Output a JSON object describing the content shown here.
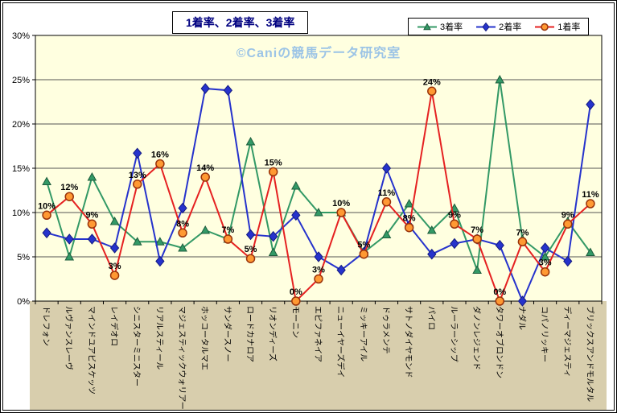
{
  "title": "1着率、2着率、3着率",
  "watermark": "©Caniの競馬データ研究室",
  "y_axis": {
    "tick_labels": [
      "0%",
      "5%",
      "10%",
      "15%",
      "20%",
      "25%",
      "30%"
    ]
  },
  "colors": {
    "plot_bg": "#ffffe0",
    "label_band_bg": "#d8cead",
    "grid": "#555555",
    "axis": "#000000",
    "title_text": "#000080",
    "watermark_text": "#9cc4e6",
    "frame_bg": "#ffffff"
  },
  "chart_data": {
    "type": "line",
    "title": "1着率、2着率、3着率",
    "ylim": [
      0,
      30
    ],
    "ytick_step": 5,
    "grid": true,
    "legend_position": "top-right",
    "categories": [
      "ドレフォン",
      "ルヴァンスレーヴ",
      "マインドユアビスケッツ",
      "レイデオロ",
      "シニスターミニスター",
      "リアルスティール",
      "マジェスティックウォリアー",
      "ホッコータルマエ",
      "サンダースノー",
      "ロードカナロア",
      "リオンディーズ",
      "モーニン",
      "エピファネイア",
      "ニューイヤーズデイ",
      "ミッキーアイル",
      "ドゥラメンテ",
      "サトノダイヤモンド",
      "パイロ",
      "ルーラーシップ",
      "ダノンレジェンド",
      "タワーオブロンドン",
      "ナダル",
      "コパノリッキー",
      "ディーマジェスティ",
      "ブリックスアンドモルタル"
    ],
    "series": [
      {
        "name": "3着率",
        "marker": "triangle",
        "color": "#339966",
        "marker_fill": "#339966",
        "marker_stroke": "#1d5c3c",
        "values": [
          13.5,
          5,
          14,
          9,
          6.7,
          6.7,
          6,
          8,
          7,
          18,
          5.5,
          13,
          10,
          10,
          5.5,
          7.5,
          11,
          8,
          10.5,
          3.5,
          25,
          7,
          5,
          9,
          5.5
        ]
      },
      {
        "name": "2着率",
        "marker": "diamond",
        "color": "#2633cc",
        "marker_fill": "#2633cc",
        "marker_stroke": "#141c80",
        "values": [
          7.7,
          7,
          7,
          6,
          16.7,
          4.5,
          10.5,
          24,
          23.8,
          7.5,
          7.3,
          9.7,
          5,
          3.5,
          5.5,
          15,
          8.5,
          5.3,
          6.5,
          7,
          6.3,
          0,
          6,
          4.5,
          22.2
        ]
      },
      {
        "name": "1着率",
        "marker": "circle",
        "color": "#e52121",
        "marker_fill": "#ff9933",
        "marker_stroke": "#99330a",
        "values": [
          9.7,
          11.8,
          8.7,
          2.9,
          13.2,
          15.5,
          7.7,
          14,
          7,
          4.8,
          14.6,
          0,
          2.5,
          10,
          5.3,
          11.2,
          8.3,
          23.7,
          8.7,
          7,
          0,
          6.7,
          3.3,
          8.7,
          11
        ],
        "point_labels": [
          "10%",
          "12%",
          "9%",
          "3%",
          "13%",
          "16%",
          "8%",
          "14%",
          "7%",
          "5%",
          "15%",
          "0%",
          "3%",
          "10%",
          "5%",
          "11%",
          "8%",
          "24%",
          "9%",
          "7%",
          "0%",
          "7%",
          "3%",
          "9%",
          "11%"
        ]
      }
    ]
  }
}
